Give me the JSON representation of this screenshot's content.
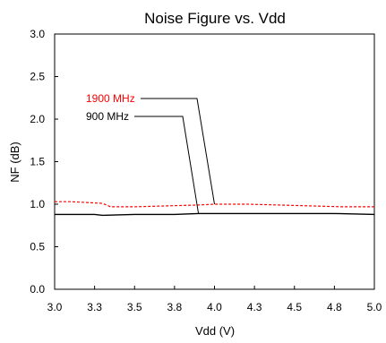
{
  "chart_data": {
    "type": "line",
    "title": "Noise Figure vs. Vdd",
    "xlabel": "Vdd (V)",
    "ylabel": "NF (dB)",
    "xlim": [
      3.0,
      5.0
    ],
    "ylim": [
      0.0,
      3.0
    ],
    "x_ticks": [
      3.0,
      3.25,
      3.5,
      3.75,
      4.0,
      4.25,
      4.5,
      4.75,
      5.0
    ],
    "x_tick_labels": [
      "3.0",
      "3.3",
      "3.5",
      "3.8",
      "4.0",
      "4.3",
      "4.5",
      "4.8",
      "5.0"
    ],
    "y_ticks": [
      0.0,
      0.5,
      1.0,
      1.5,
      2.0,
      2.5,
      3.0
    ],
    "y_tick_labels": [
      "0.0",
      "0.5",
      "1.0",
      "1.5",
      "2.0",
      "2.5",
      "3.0"
    ],
    "grid": false,
    "legend_position": "annotations with leader lines",
    "series": [
      {
        "name": "1900 MHz",
        "color": "#ff0000",
        "dash": "dashed",
        "x": [
          3.0,
          3.1,
          3.2,
          3.3,
          3.35,
          3.5,
          3.7,
          3.9,
          4.0,
          4.2,
          4.4,
          4.6,
          4.8,
          5.0
        ],
        "y": [
          1.03,
          1.03,
          1.02,
          1.01,
          0.97,
          0.97,
          0.98,
          0.99,
          1.0,
          1.0,
          0.99,
          0.98,
          0.97,
          0.97
        ],
        "annotation_target": 4.0
      },
      {
        "name": "900 MHz",
        "color": "#000000",
        "dash": "solid",
        "x": [
          3.0,
          3.25,
          3.3,
          3.5,
          3.75,
          3.9,
          4.0,
          4.25,
          4.5,
          4.75,
          5.0
        ],
        "y": [
          0.88,
          0.88,
          0.87,
          0.88,
          0.88,
          0.89,
          0.89,
          0.89,
          0.89,
          0.89,
          0.88
        ],
        "annotation_target": 3.9
      }
    ]
  }
}
